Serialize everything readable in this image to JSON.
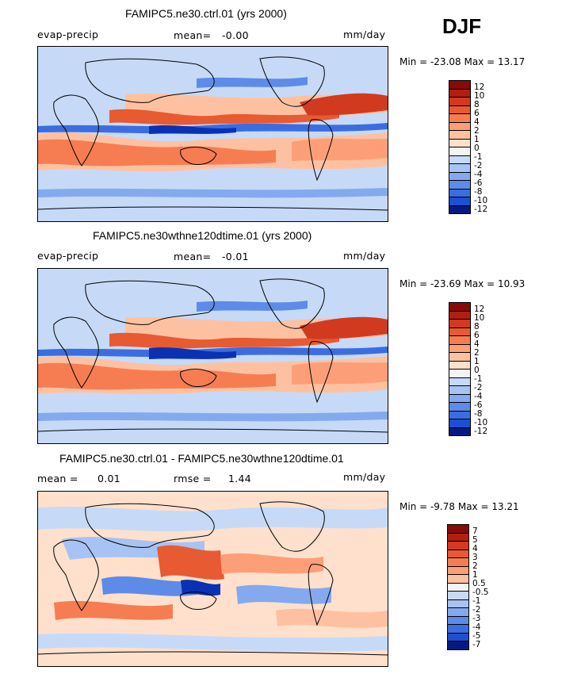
{
  "season": "DJF",
  "colors": {
    "warm": [
      "#ffe0cc",
      "#fdc1a1",
      "#fc9f78",
      "#f67d52",
      "#e85a32",
      "#d23a1f",
      "#b21e10",
      "#880a08"
    ],
    "neutral": "#f4f4f4",
    "cool": [
      "#c6daf7",
      "#a7c3f3",
      "#84a9ee",
      "#5f8be8",
      "#3c6de0",
      "#1e4fd2",
      "#0a31b4",
      "#041a82"
    ]
  },
  "panels": [
    {
      "title": "FAMIPC5.ne30.ctrl.01 (yrs 2000)",
      "variable": "evap-precip",
      "stat_label": "mean=",
      "stat_value": "-0.00",
      "stat2_label": "",
      "stat2_value": "",
      "units": "mm/day",
      "min_max": "Min = -23.08 Max =  13.17",
      "colorbar_labels": [
        "12",
        "10",
        "8",
        "6",
        "4",
        "2",
        "1",
        "0",
        "-1",
        "-2",
        "-4",
        "-6",
        "-8",
        "-10",
        "-12"
      ]
    },
    {
      "title": "FAMIPC5.ne30wthne120dtime.01 (yrs 2000)",
      "variable": "evap-precip",
      "stat_label": "mean=",
      "stat_value": "-0.01",
      "stat2_label": "",
      "stat2_value": "",
      "units": "mm/day",
      "min_max": "Min = -23.69 Max =  10.93",
      "colorbar_labels": [
        "12",
        "10",
        "8",
        "6",
        "4",
        "2",
        "1",
        "0",
        "-1",
        "-2",
        "-4",
        "-6",
        "-8",
        "-10",
        "-12"
      ]
    },
    {
      "title": "FAMIPC5.ne30.ctrl.01 - FAMIPC5.ne30wthne120dtime.01",
      "variable": "",
      "stat_label": "mean =",
      "stat_value": "0.01",
      "stat2_label": "rmse =",
      "stat2_value": "1.44",
      "units": "mm/day",
      "min_max": "Min =  -9.78 Max =  13.21",
      "colorbar_labels": [
        "7",
        "5",
        "4",
        "3",
        "2",
        "1",
        "0.5",
        "-0.5",
        "-1",
        "-2",
        "-3",
        "-4",
        "-5",
        "-7"
      ]
    }
  ]
}
